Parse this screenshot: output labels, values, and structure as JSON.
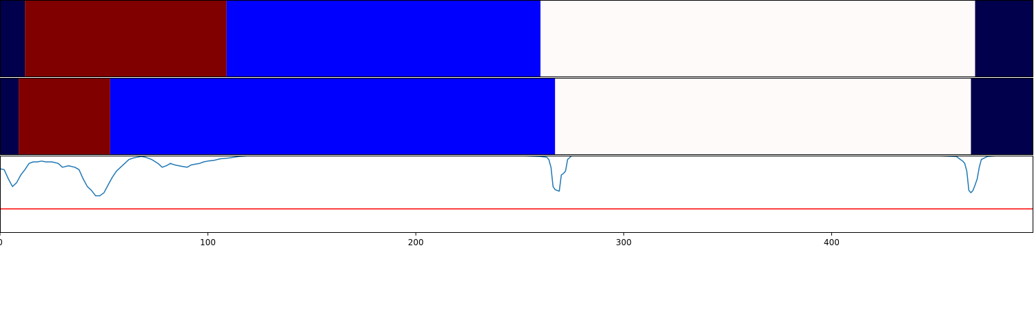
{
  "chart_data": [
    {
      "type": "segmentation-bar",
      "title": "",
      "xlim": [
        0,
        497
      ],
      "segments": [
        {
          "start": 0,
          "end": 12,
          "color": "#00004c"
        },
        {
          "start": 12,
          "end": 109,
          "color": "#800000"
        },
        {
          "start": 109,
          "end": 260,
          "color": "#0000ff"
        },
        {
          "start": 260,
          "end": 469,
          "color": "#fffafa"
        },
        {
          "start": 469,
          "end": 497,
          "color": "#00004c"
        }
      ]
    },
    {
      "type": "segmentation-bar",
      "title": "",
      "xlim": [
        0,
        497
      ],
      "segments": [
        {
          "start": 0,
          "end": 9,
          "color": "#00004c"
        },
        {
          "start": 9,
          "end": 53,
          "color": "#800000"
        },
        {
          "start": 53,
          "end": 267,
          "color": "#0000ff"
        },
        {
          "start": 267,
          "end": 467,
          "color": "#fffafa"
        },
        {
          "start": 467,
          "end": 497,
          "color": "#00004c"
        }
      ]
    },
    {
      "type": "line",
      "title": "",
      "xlabel": "",
      "ylabel": "",
      "xlim": [
        0,
        497
      ],
      "ylim": [
        0,
        1
      ],
      "xticks": [
        0,
        100,
        200,
        300,
        400
      ],
      "xtick_labels": [
        "0",
        "100",
        "200",
        "300",
        "400"
      ],
      "threshold": {
        "value": 0.31,
        "color": "#ff0000"
      },
      "series": [
        {
          "color": "#1f77b4",
          "x": [
            0,
            2,
            4,
            6,
            8,
            10,
            12,
            14,
            16,
            18,
            20,
            22,
            25,
            28,
            30,
            33,
            36,
            38,
            40,
            42,
            44,
            46,
            48,
            50,
            52,
            54,
            56,
            58,
            60,
            62,
            64,
            66,
            68,
            70,
            73,
            76,
            78,
            80,
            82,
            84,
            86,
            88,
            90,
            92,
            94,
            96,
            98,
            100,
            103,
            106,
            110,
            115,
            120,
            130,
            150,
            200,
            250,
            260,
            263,
            264,
            265,
            266,
            267,
            268,
            269,
            270,
            271,
            272,
            273,
            275,
            280,
            300,
            350,
            400,
            450,
            460,
            461,
            462,
            463,
            464,
            465,
            466,
            467,
            468,
            469,
            470,
            471,
            472,
            475,
            480,
            490,
            497
          ],
          "y": [
            0.83,
            0.82,
            0.7,
            0.6,
            0.65,
            0.75,
            0.82,
            0.9,
            0.92,
            0.92,
            0.93,
            0.92,
            0.92,
            0.9,
            0.85,
            0.87,
            0.85,
            0.82,
            0.7,
            0.6,
            0.55,
            0.48,
            0.48,
            0.52,
            0.62,
            0.72,
            0.8,
            0.85,
            0.9,
            0.95,
            0.97,
            0.98,
            0.99,
            0.98,
            0.95,
            0.9,
            0.85,
            0.87,
            0.9,
            0.88,
            0.87,
            0.86,
            0.85,
            0.88,
            0.89,
            0.9,
            0.92,
            0.93,
            0.94,
            0.96,
            0.97,
            0.99,
            1.0,
            1.0,
            1.0,
            1.0,
            1.0,
            0.99,
            0.98,
            0.95,
            0.85,
            0.6,
            0.56,
            0.55,
            0.54,
            0.75,
            0.77,
            0.8,
            0.95,
            1.0,
            1.0,
            1.0,
            1.0,
            1.0,
            1.0,
            0.99,
            0.97,
            0.95,
            0.93,
            0.9,
            0.8,
            0.55,
            0.52,
            0.55,
            0.62,
            0.7,
            0.85,
            0.95,
            0.99,
            1.0,
            1.0,
            1.0
          ]
        }
      ]
    }
  ]
}
